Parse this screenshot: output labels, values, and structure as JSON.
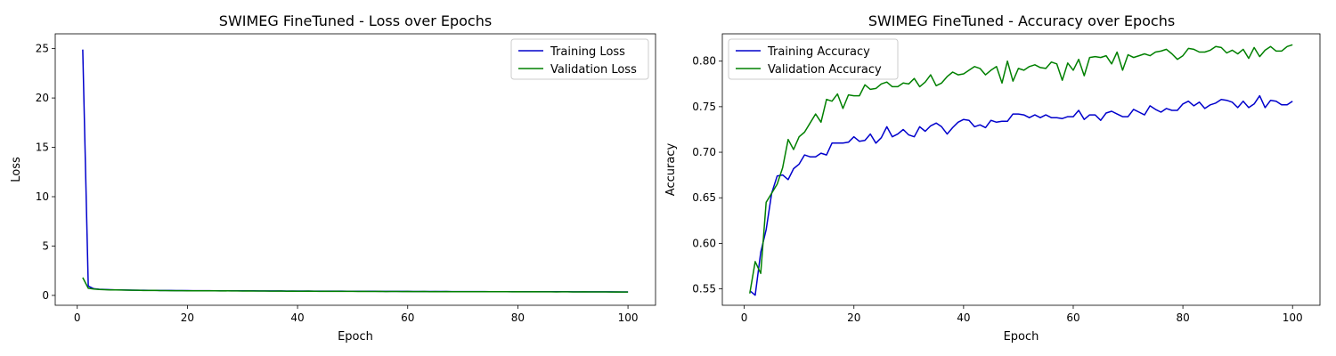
{
  "colors": {
    "training": "#0000cc",
    "validation": "#008000"
  },
  "chart_data": [
    {
      "type": "line",
      "title": "SWIMEG FineTuned - Loss over Epochs",
      "xlabel": "Epoch",
      "ylabel": "Loss",
      "xlim": [
        -4,
        105
      ],
      "ylim": [
        -1,
        26.5
      ],
      "xticks": [
        0,
        20,
        40,
        60,
        80,
        100
      ],
      "yticks": [
        0,
        5,
        10,
        15,
        20,
        25
      ],
      "grid": false,
      "legend": "upper-right",
      "series": [
        {
          "name": "Training Loss",
          "color": "#0000cc",
          "x": [
            1,
            2,
            3,
            4,
            5,
            6,
            7,
            8,
            9,
            10,
            11,
            12,
            13,
            14,
            15,
            16,
            17,
            18,
            19,
            20,
            21,
            22,
            23,
            24,
            25,
            26,
            27,
            28,
            29,
            30,
            31,
            32,
            33,
            34,
            35,
            36,
            37,
            38,
            39,
            40,
            41,
            42,
            43,
            44,
            45,
            46,
            47,
            48,
            49,
            50,
            51,
            52,
            53,
            54,
            55,
            56,
            57,
            58,
            59,
            60,
            61,
            62,
            63,
            64,
            65,
            66,
            67,
            68,
            69,
            70,
            71,
            72,
            73,
            74,
            75,
            76,
            77,
            78,
            79,
            80,
            81,
            82,
            83,
            84,
            85,
            86,
            87,
            88,
            89,
            90,
            91,
            92,
            93,
            94,
            95,
            96,
            97,
            98,
            99,
            100
          ],
          "y": [
            24.9,
            0.95,
            0.68,
            0.62,
            0.6,
            0.58,
            0.56,
            0.55,
            0.54,
            0.53,
            0.52,
            0.52,
            0.51,
            0.51,
            0.5,
            0.5,
            0.5,
            0.49,
            0.49,
            0.49,
            0.48,
            0.48,
            0.48,
            0.48,
            0.47,
            0.47,
            0.47,
            0.47,
            0.46,
            0.46,
            0.46,
            0.46,
            0.45,
            0.45,
            0.45,
            0.45,
            0.45,
            0.44,
            0.44,
            0.44,
            0.44,
            0.44,
            0.43,
            0.43,
            0.43,
            0.43,
            0.43,
            0.43,
            0.42,
            0.42,
            0.42,
            0.42,
            0.42,
            0.42,
            0.41,
            0.41,
            0.41,
            0.41,
            0.41,
            0.41,
            0.4,
            0.4,
            0.4,
            0.4,
            0.4,
            0.4,
            0.4,
            0.39,
            0.39,
            0.39,
            0.39,
            0.39,
            0.39,
            0.39,
            0.38,
            0.38,
            0.38,
            0.38,
            0.38,
            0.38,
            0.38,
            0.37,
            0.37,
            0.37,
            0.37,
            0.37,
            0.37,
            0.37,
            0.37,
            0.36,
            0.36,
            0.36,
            0.36,
            0.36,
            0.36,
            0.36,
            0.36,
            0.35,
            0.35,
            0.35
          ]
        },
        {
          "name": "Validation Loss",
          "color": "#008000",
          "x": [
            1,
            2,
            3,
            4,
            5,
            6,
            7,
            8,
            9,
            10,
            11,
            12,
            13,
            14,
            15,
            16,
            17,
            18,
            19,
            20,
            21,
            22,
            23,
            24,
            25,
            26,
            27,
            28,
            29,
            30,
            31,
            32,
            33,
            34,
            35,
            36,
            37,
            38,
            39,
            40,
            41,
            42,
            43,
            44,
            45,
            46,
            47,
            48,
            49,
            50,
            51,
            52,
            53,
            54,
            55,
            56,
            57,
            58,
            59,
            60,
            61,
            62,
            63,
            64,
            65,
            66,
            67,
            68,
            69,
            70,
            71,
            72,
            73,
            74,
            75,
            76,
            77,
            78,
            79,
            80,
            81,
            82,
            83,
            84,
            85,
            86,
            87,
            88,
            89,
            90,
            91,
            92,
            93,
            94,
            95,
            96,
            97,
            98,
            99,
            100
          ],
          "y": [
            1.8,
            0.72,
            0.65,
            0.6,
            0.58,
            0.56,
            0.55,
            0.54,
            0.53,
            0.52,
            0.52,
            0.5,
            0.5,
            0.51,
            0.49,
            0.49,
            0.48,
            0.48,
            0.48,
            0.47,
            0.47,
            0.46,
            0.47,
            0.46,
            0.46,
            0.45,
            0.46,
            0.45,
            0.45,
            0.44,
            0.45,
            0.44,
            0.44,
            0.44,
            0.43,
            0.43,
            0.44,
            0.42,
            0.43,
            0.42,
            0.42,
            0.43,
            0.42,
            0.41,
            0.42,
            0.41,
            0.42,
            0.41,
            0.41,
            0.41,
            0.4,
            0.41,
            0.4,
            0.4,
            0.41,
            0.39,
            0.4,
            0.4,
            0.39,
            0.4,
            0.39,
            0.39,
            0.4,
            0.38,
            0.39,
            0.38,
            0.39,
            0.38,
            0.38,
            0.38,
            0.38,
            0.37,
            0.38,
            0.38,
            0.37,
            0.37,
            0.37,
            0.37,
            0.36,
            0.37,
            0.36,
            0.36,
            0.37,
            0.36,
            0.36,
            0.36,
            0.35,
            0.36,
            0.36,
            0.35,
            0.35,
            0.36,
            0.35,
            0.35,
            0.35,
            0.35,
            0.34,
            0.35,
            0.34,
            0.34
          ]
        }
      ]
    },
    {
      "type": "line",
      "title": "SWIMEG FineTuned - Accuracy over Epochs",
      "xlabel": "Epoch",
      "ylabel": "Accuracy",
      "xlim": [
        -4,
        105
      ],
      "ylim": [
        0.532,
        0.83
      ],
      "xticks": [
        0,
        20,
        40,
        60,
        80,
        100
      ],
      "yticks": [
        0.55,
        0.6,
        0.65,
        0.7,
        0.75,
        0.8
      ],
      "grid": false,
      "legend": "upper-left",
      "series": [
        {
          "name": "Training Accuracy",
          "color": "#0000cc",
          "x": [
            1,
            2,
            3,
            4,
            5,
            6,
            7,
            8,
            9,
            10,
            11,
            12,
            13,
            14,
            15,
            16,
            17,
            18,
            19,
            20,
            21,
            22,
            23,
            24,
            25,
            26,
            27,
            28,
            29,
            30,
            31,
            32,
            33,
            34,
            35,
            36,
            37,
            38,
            39,
            40,
            41,
            42,
            43,
            44,
            45,
            46,
            47,
            48,
            49,
            50,
            51,
            52,
            53,
            54,
            55,
            56,
            57,
            58,
            59,
            60,
            61,
            62,
            63,
            64,
            65,
            66,
            67,
            68,
            69,
            70,
            71,
            72,
            73,
            74,
            75,
            76,
            77,
            78,
            79,
            80,
            81,
            82,
            83,
            84,
            85,
            86,
            87,
            88,
            89,
            90,
            91,
            92,
            93,
            94,
            95,
            96,
            97,
            98,
            99,
            100
          ],
          "y": [
            0.548,
            0.543,
            0.59,
            0.615,
            0.655,
            0.674,
            0.675,
            0.67,
            0.682,
            0.687,
            0.697,
            0.695,
            0.695,
            0.699,
            0.697,
            0.71,
            0.71,
            0.71,
            0.711,
            0.717,
            0.712,
            0.713,
            0.72,
            0.71,
            0.716,
            0.728,
            0.717,
            0.72,
            0.725,
            0.719,
            0.717,
            0.728,
            0.723,
            0.729,
            0.732,
            0.728,
            0.72,
            0.727,
            0.733,
            0.736,
            0.735,
            0.728,
            0.73,
            0.727,
            0.735,
            0.733,
            0.734,
            0.734,
            0.742,
            0.742,
            0.741,
            0.738,
            0.741,
            0.738,
            0.741,
            0.738,
            0.738,
            0.737,
            0.739,
            0.739,
            0.746,
            0.736,
            0.741,
            0.741,
            0.735,
            0.743,
            0.745,
            0.742,
            0.739,
            0.739,
            0.747,
            0.744,
            0.741,
            0.751,
            0.747,
            0.744,
            0.748,
            0.746,
            0.746,
            0.753,
            0.756,
            0.751,
            0.755,
            0.748,
            0.752,
            0.754,
            0.758,
            0.757,
            0.755,
            0.749,
            0.756,
            0.749,
            0.753,
            0.762,
            0.749,
            0.757,
            0.756,
            0.752,
            0.752,
            0.756
          ]
        },
        {
          "name": "Validation Accuracy",
          "color": "#008000",
          "x": [
            1,
            2,
            3,
            4,
            5,
            6,
            7,
            8,
            9,
            10,
            11,
            12,
            13,
            14,
            15,
            16,
            17,
            18,
            19,
            20,
            21,
            22,
            23,
            24,
            25,
            26,
            27,
            28,
            29,
            30,
            31,
            32,
            33,
            34,
            35,
            36,
            37,
            38,
            39,
            40,
            41,
            42,
            43,
            44,
            45,
            46,
            47,
            48,
            49,
            50,
            51,
            52,
            53,
            54,
            55,
            56,
            57,
            58,
            59,
            60,
            61,
            62,
            63,
            64,
            65,
            66,
            67,
            68,
            69,
            70,
            71,
            72,
            73,
            74,
            75,
            76,
            77,
            78,
            79,
            80,
            81,
            82,
            83,
            84,
            85,
            86,
            87,
            88,
            89,
            90,
            91,
            92,
            93,
            94,
            95,
            96,
            97,
            98,
            99,
            100
          ],
          "y": [
            0.545,
            0.58,
            0.567,
            0.645,
            0.655,
            0.665,
            0.683,
            0.714,
            0.703,
            0.717,
            0.722,
            0.732,
            0.742,
            0.733,
            0.758,
            0.756,
            0.764,
            0.748,
            0.763,
            0.762,
            0.762,
            0.774,
            0.769,
            0.77,
            0.775,
            0.777,
            0.772,
            0.772,
            0.776,
            0.775,
            0.781,
            0.772,
            0.777,
            0.785,
            0.773,
            0.776,
            0.783,
            0.788,
            0.785,
            0.786,
            0.79,
            0.794,
            0.792,
            0.785,
            0.79,
            0.794,
            0.776,
            0.8,
            0.778,
            0.792,
            0.79,
            0.794,
            0.796,
            0.793,
            0.792,
            0.799,
            0.797,
            0.779,
            0.798,
            0.79,
            0.802,
            0.784,
            0.804,
            0.805,
            0.804,
            0.806,
            0.797,
            0.81,
            0.79,
            0.807,
            0.804,
            0.806,
            0.808,
            0.806,
            0.81,
            0.811,
            0.813,
            0.808,
            0.802,
            0.806,
            0.814,
            0.813,
            0.81,
            0.81,
            0.812,
            0.816,
            0.815,
            0.809,
            0.812,
            0.808,
            0.813,
            0.803,
            0.815,
            0.805,
            0.812,
            0.816,
            0.811,
            0.811,
            0.816,
            0.818
          ]
        }
      ]
    }
  ]
}
